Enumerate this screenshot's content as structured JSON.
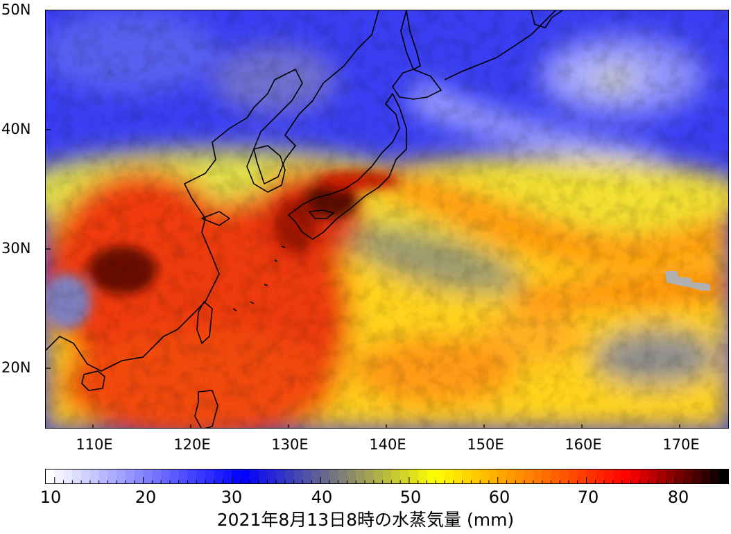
{
  "map": {
    "lat_labels": [
      "50N",
      "40N",
      "30N",
      "20N"
    ],
    "lat_values": [
      50,
      40,
      30,
      20
    ],
    "lon_labels": [
      "110E",
      "120E",
      "130E",
      "140E",
      "150E",
      "160E",
      "170E"
    ],
    "lon_values": [
      110,
      120,
      130,
      140,
      150,
      160,
      170
    ],
    "lon_range": [
      105,
      175
    ],
    "lat_range": [
      15,
      50
    ],
    "features": {
      "coastlines": true,
      "missing_data_color": "#b0b0b0"
    }
  },
  "colorbar": {
    "tick_labels": [
      "10",
      "20",
      "30",
      "40",
      "50",
      "60",
      "70",
      "80"
    ],
    "tick_values": [
      10,
      20,
      30,
      40,
      50,
      60,
      70,
      80
    ],
    "range": [
      9,
      86
    ],
    "colors": [
      "#ffffff",
      "#8080ff",
      "#0000ff",
      "#7a7a7a",
      "#ffff00",
      "#ff8000",
      "#ff0000",
      "#000000"
    ]
  },
  "caption": "2021年8月13日8時の水蒸気量 (mm)"
}
